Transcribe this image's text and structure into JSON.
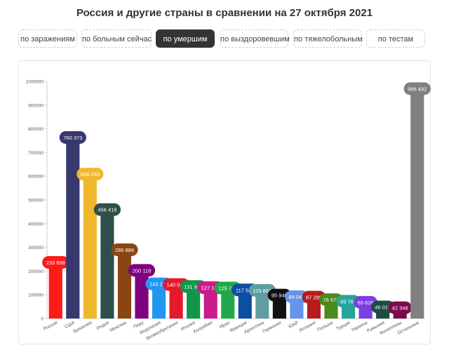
{
  "header": {
    "title": "Россия и другие страны в сравнении на 27 октября 2021"
  },
  "tabs": [
    {
      "label": "по заражениям",
      "active": false
    },
    {
      "label": "по больным сейчас",
      "active": false
    },
    {
      "label": "по умершим",
      "active": true
    },
    {
      "label": "по выздоровевшим",
      "active": false
    },
    {
      "label": "по тяжелобольным",
      "active": false
    },
    {
      "label": "по тестам",
      "active": false
    }
  ],
  "chart_data": {
    "type": "bar",
    "title": "",
    "xlabel": "",
    "ylabel": "",
    "ylim": [
      0,
      1000000
    ],
    "yticks": [
      "0",
      "100000",
      "200000",
      "300000",
      "400000",
      "500000",
      "600000",
      "700000",
      "800000",
      "900000",
      "1000000"
    ],
    "grid": false,
    "categories": [
      "Россия",
      "США",
      "Бразилия",
      "Индия",
      "Мексика",
      "Перу",
      "Индонезия",
      "Великобритания",
      "Италия",
      "Колумбия",
      "Иран",
      "Франция",
      "Аргентина",
      "Германия",
      "ЮАР",
      "Испания",
      "Польша",
      "Турция",
      "Украина",
      "Румыния",
      "Филиппины",
      "Остальные"
    ],
    "values": [
      233898,
      760373,
      606293,
      456418,
      286888,
      200118,
      143299,
      140041,
      131954,
      127133,
      125716,
      117589,
      115866,
      95940,
      89049,
      87289,
      76672,
      69769,
      65628,
      46015,
      42348,
      966492
    ],
    "labels": [
      "233 898",
      "760 373",
      "606 293",
      "456 418",
      "286 888",
      "200 118",
      "143 299",
      "140 041",
      "131 954",
      "127 133",
      "125 716",
      "117 589",
      "115 866",
      "95 940",
      "89 049",
      "87 289",
      "76 672",
      "69 769",
      "65 628",
      "46 015",
      "42 348",
      "966 492"
    ],
    "colors": [
      "#ff1a1a",
      "#37386e",
      "#f0b92d",
      "#2e4f4a",
      "#8b4513",
      "#800080",
      "#2196f3",
      "#e6192b",
      "#129649",
      "#cc1b8c",
      "#22a84a",
      "#0b4ea2",
      "#5f9ea0",
      "#111111",
      "#6495ed",
      "#b71c1c",
      "#4b8b1d",
      "#26a69a",
      "#7b3fe4",
      "#1e4d40",
      "#7a0b4c",
      "#808080"
    ]
  }
}
